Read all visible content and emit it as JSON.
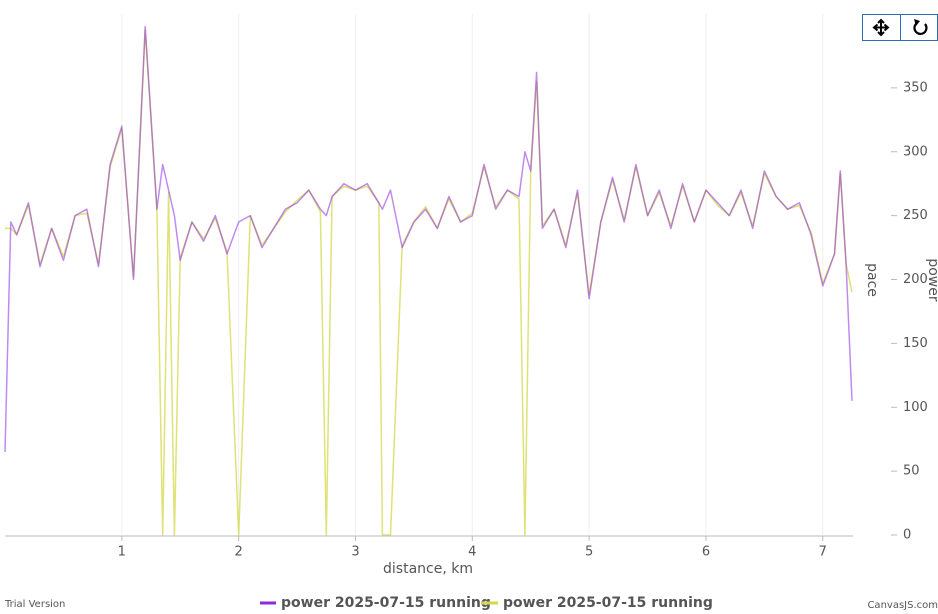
{
  "chart_data": {
    "type": "line",
    "x_label": "distance, km",
    "y_labels": [
      "pace",
      "power"
    ],
    "x": [
      0,
      0.05,
      0.1,
      0.2,
      0.3,
      0.4,
      0.5,
      0.6,
      0.7,
      0.8,
      0.9,
      1.0,
      1.1,
      1.2,
      1.3,
      1.35,
      1.4,
      1.45,
      1.5,
      1.6,
      1.7,
      1.8,
      1.9,
      2.0,
      2.1,
      2.2,
      2.3,
      2.4,
      2.5,
      2.6,
      2.7,
      2.75,
      2.8,
      2.9,
      3.0,
      3.1,
      3.2,
      3.23,
      3.3,
      3.4,
      3.5,
      3.6,
      3.7,
      3.8,
      3.9,
      4.0,
      4.1,
      4.2,
      4.3,
      4.4,
      4.45,
      4.5,
      4.55,
      4.6,
      4.7,
      4.8,
      4.9,
      5.0,
      5.1,
      5.2,
      5.3,
      5.4,
      5.5,
      5.6,
      5.7,
      5.8,
      5.9,
      6.0,
      6.1,
      6.2,
      6.3,
      6.4,
      6.5,
      6.6,
      6.7,
      6.8,
      6.9,
      7.0,
      7.1,
      7.15,
      7.2,
      7.25
    ],
    "series": [
      {
        "name": "power 2025-07-15 running",
        "color": "#8a2be2",
        "values": [
          65,
          245,
          235,
          260,
          210,
          240,
          215,
          250,
          255,
          210,
          290,
          320,
          200,
          398,
          255,
          290,
          270,
          250,
          215,
          245,
          230,
          250,
          220,
          245,
          250,
          225,
          240,
          255,
          260,
          270,
          255,
          250,
          265,
          275,
          270,
          275,
          260,
          255,
          270,
          225,
          245,
          255,
          240,
          265,
          245,
          250,
          290,
          255,
          270,
          265,
          300,
          285,
          362,
          240,
          255,
          225,
          270,
          185,
          245,
          280,
          245,
          290,
          250,
          270,
          240,
          275,
          245,
          270,
          260,
          250,
          270,
          240,
          285,
          265,
          255,
          260,
          235,
          195,
          220,
          285,
          210,
          105
        ]
      },
      {
        "name": "power 2025-07-15 running",
        "color": "#d4d84a",
        "values": [
          240,
          240,
          235,
          258,
          212,
          240,
          218,
          250,
          252,
          212,
          288,
          318,
          202,
          395,
          255,
          0,
          268,
          0,
          217,
          245,
          232,
          248,
          222,
          0,
          250,
          227,
          240,
          253,
          262,
          270,
          253,
          0,
          265,
          273,
          270,
          273,
          260,
          0,
          0,
          227,
          245,
          257,
          240,
          263,
          245,
          252,
          288,
          257,
          270,
          263,
          0,
          283,
          355,
          242,
          255,
          227,
          268,
          188,
          245,
          278,
          247,
          288,
          250,
          268,
          242,
          273,
          245,
          270,
          258,
          250,
          268,
          242,
          283,
          265,
          255,
          258,
          237,
          197,
          220,
          283,
          212,
          190
        ]
      }
    ],
    "xlim": [
      0,
      7.25
    ],
    "xticks": [
      1,
      2,
      3,
      4,
      5,
      6,
      7
    ],
    "ylim": [
      0,
      400
    ],
    "yticks": [
      0,
      50,
      100,
      150,
      200,
      250,
      300,
      350
    ],
    "grid": "x",
    "legend": "bottom",
    "footer_left": "Trial Version",
    "footer_right": "CanvasJS.com"
  }
}
